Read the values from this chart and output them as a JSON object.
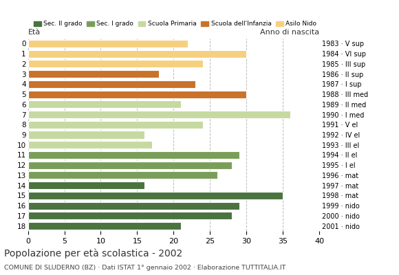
{
  "ages": [
    18,
    17,
    16,
    15,
    14,
    13,
    12,
    11,
    10,
    9,
    8,
    7,
    6,
    5,
    4,
    3,
    2,
    1,
    0
  ],
  "values": [
    21,
    28,
    29,
    35,
    16,
    26,
    28,
    29,
    17,
    16,
    24,
    36,
    21,
    30,
    23,
    18,
    24,
    30,
    22
  ],
  "years": [
    "1983 · V sup",
    "1984 · VI sup",
    "1985 · III sup",
    "1986 · II sup",
    "1987 · I sup",
    "1988 · III med",
    "1989 · II med",
    "1990 · I med",
    "1991 · V el",
    "1992 · IV el",
    "1993 · III el",
    "1994 · II el",
    "1995 · I el",
    "1996 · mat",
    "1997 · mat",
    "1998 · mat",
    "1999 · nido",
    "2000 · nido",
    "2001 · nido"
  ],
  "bar_colors": [
    "#4a7340",
    "#4a7340",
    "#4a7340",
    "#4a7340",
    "#4a7340",
    "#7a9e5a",
    "#7a9e5a",
    "#7a9e5a",
    "#c5d9a0",
    "#c5d9a0",
    "#c5d9a0",
    "#c5d9a0",
    "#c5d9a0",
    "#c8722a",
    "#c8722a",
    "#c8722a",
    "#f5d080",
    "#f5d080",
    "#f5d080"
  ],
  "title": "Popolazione per età scolastica - 2002",
  "subtitle": "COMUNE DI SLUDERNO (BZ) · Dati ISTAT 1° gennaio 2002 · Elaborazione TUTTITALIA.IT",
  "xlabel_age": "Età",
  "xlabel_year": "Anno di nascita",
  "xlim": [
    0,
    40
  ],
  "xticks": [
    0,
    5,
    10,
    15,
    20,
    25,
    30,
    35,
    40
  ],
  "grid_color": "#bbbbbb",
  "bg_color": "#ffffff",
  "legend_labels": [
    "Sec. II grado",
    "Sec. I grado",
    "Scuola Primaria",
    "Scuola dell'Infanzia",
    "Asilo Nido"
  ],
  "legend_colors": [
    "#4a7340",
    "#7a9e5a",
    "#c5d9a0",
    "#c8722a",
    "#f5d080"
  ]
}
